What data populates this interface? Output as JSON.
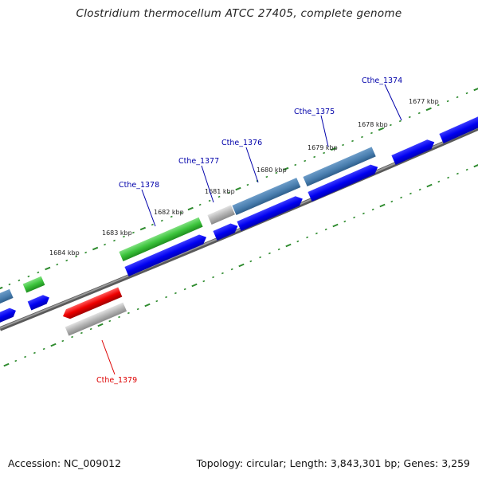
{
  "title": "Clostridium thermocellum ATCC 27405, complete genome",
  "footer": {
    "accession": "Accession: NC_009012",
    "summary": "Topology: circular; Length: 3,843,301 bp; Genes: 3,259"
  },
  "colors": {
    "cds_blue": "#0000ee",
    "steelblue_gene": "#4a7fb0",
    "green_gene": "#3cc43c",
    "red_gene": "#ee0000",
    "gray_gene": "#b4b4b4",
    "backbone": "#808080",
    "tick_green": "#2e8b2e",
    "label_blue": "#0000aa",
    "label_red": "#dd0000"
  },
  "ticks": [
    {
      "label": "1677 kbp"
    },
    {
      "label": "1678 kbp"
    },
    {
      "label": "1679 kbp"
    },
    {
      "label": "1680 kbp"
    },
    {
      "label": "1681 kbp"
    },
    {
      "label": "1682 kbp"
    },
    {
      "label": "1683 kbp"
    },
    {
      "label": "1684 kbp"
    }
  ],
  "gene_labels": [
    {
      "name": "Cthe_1374",
      "color": "blue"
    },
    {
      "name": "Cthe_1375",
      "color": "blue"
    },
    {
      "name": "Cthe_1376",
      "color": "blue"
    },
    {
      "name": "Cthe_1377",
      "color": "blue"
    },
    {
      "name": "Cthe_1378",
      "color": "blue"
    },
    {
      "name": "Cthe_1379",
      "color": "red"
    }
  ]
}
